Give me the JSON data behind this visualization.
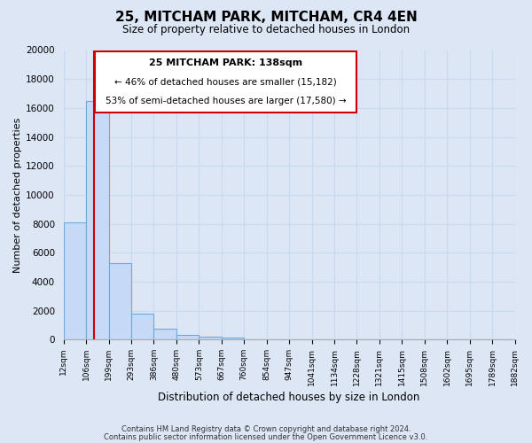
{
  "title": "25, MITCHAM PARK, MITCHAM, CR4 4EN",
  "subtitle": "Size of property relative to detached houses in London",
  "xlabel": "Distribution of detached houses by size in London",
  "ylabel": "Number of detached properties",
  "bar_values": [
    8100,
    16500,
    5300,
    1800,
    750,
    300,
    200,
    150,
    0,
    0,
    0,
    0,
    0,
    0,
    0,
    0,
    0,
    0,
    0,
    0
  ],
  "bar_labels": [
    "12sqm",
    "106sqm",
    "199sqm",
    "293sqm",
    "386sqm",
    "480sqm",
    "573sqm",
    "667sqm",
    "760sqm",
    "854sqm",
    "947sqm",
    "1041sqm",
    "1134sqm",
    "1228sqm",
    "1321sqm",
    "1415sqm",
    "1508sqm",
    "1602sqm",
    "1695sqm",
    "1789sqm",
    "1882sqm"
  ],
  "bar_color": "#c6d9f7",
  "bar_edge_color": "#6fa8dc",
  "ylim": [
    0,
    20000
  ],
  "yticks": [
    0,
    2000,
    4000,
    6000,
    8000,
    10000,
    12000,
    14000,
    16000,
    18000,
    20000
  ],
  "property_line_label": "25 MITCHAM PARK: 138sqm",
  "annotation_line1": "← 46% of detached houses are smaller (15,182)",
  "annotation_line2": "53% of semi-detached houses are larger (17,580) →",
  "box_color": "#ffffff",
  "box_edge_color": "#cc0000",
  "line_color": "#cc0000",
  "grid_color": "#c9d9f0",
  "plot_bg": "#dce6f5",
  "figure_bg": "#dce6f5",
  "footer_line1": "Contains HM Land Registry data © Crown copyright and database right 2024.",
  "footer_line2": "Contains public sector information licensed under the Open Government Licence v3.0."
}
